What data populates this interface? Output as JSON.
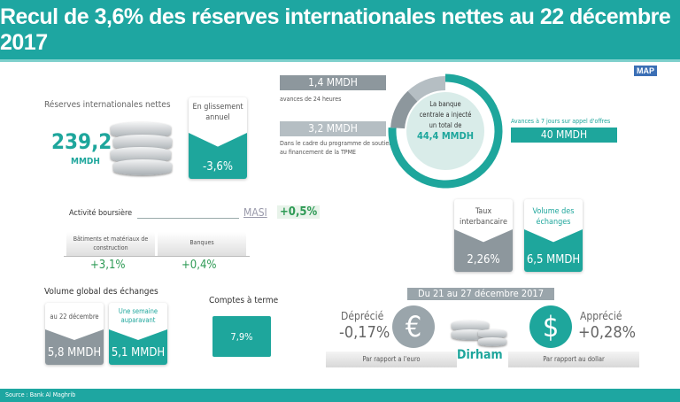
{
  "title": "Recul de 3,6% des réserves internationales nettes au 22 décembre 2017",
  "logo": "MAP",
  "reserves": {
    "label": "Réserves internationales nettes",
    "value": "239,2",
    "unit": "MMDH",
    "change_label": "En glissement annuel",
    "change": "-3,6%"
  },
  "injection": {
    "center_lines": [
      "La banque",
      "centrale a injecté",
      "un total de"
    ],
    "total": "44,4 MMDH",
    "items": [
      {
        "value": "1,4 MMDH",
        "desc": "avances de 24 heures",
        "amount": 1.4,
        "color": "#8d979d"
      },
      {
        "value": "3,2 MMDH",
        "desc": "Dans le cadre du programme de soutien au financement de la TPME",
        "amount": 3.2,
        "color": "#b5bec3"
      },
      {
        "value": "40 MMDH",
        "desc": "Avances à 7 jours sur appel d'offres",
        "amount": 40,
        "color": "#1ea69c"
      }
    ]
  },
  "bourse": {
    "label": "Activité boursière",
    "index": "MASI",
    "index_change": "+0,5%",
    "sectors": [
      {
        "name": "Bâtiments et matériaux de construction",
        "change": "+3,1%"
      },
      {
        "name": "Banques",
        "change": "+0,4%"
      }
    ]
  },
  "volume": {
    "label": "Volume global des échanges",
    "cards": [
      {
        "label": "au 22 décembre",
        "value": "5,8 MMDH"
      },
      {
        "label": "Une semaine auparavant",
        "value": "5,1 MMDH"
      }
    ]
  },
  "comptes": {
    "label": "Comptes à terme",
    "value": "7,9%"
  },
  "interbank": {
    "rate_label": "Taux interbancaire",
    "rate": "2,26%",
    "volume_label": "Volume des échanges",
    "volume": "6,5 MMDH"
  },
  "dirham": {
    "period": "Du 21 au 27 décembre 2017",
    "center": "Dirham",
    "euro": {
      "status": "Déprécié",
      "change": "-0,17%",
      "ref": "Par rapport a l'euro",
      "symbol": "€"
    },
    "dollar": {
      "status": "Apprécié",
      "change": "+0,28%",
      "ref": "Par rapport au dollar",
      "symbol": "$"
    }
  },
  "source": "Source : Bank Al Maghrib"
}
